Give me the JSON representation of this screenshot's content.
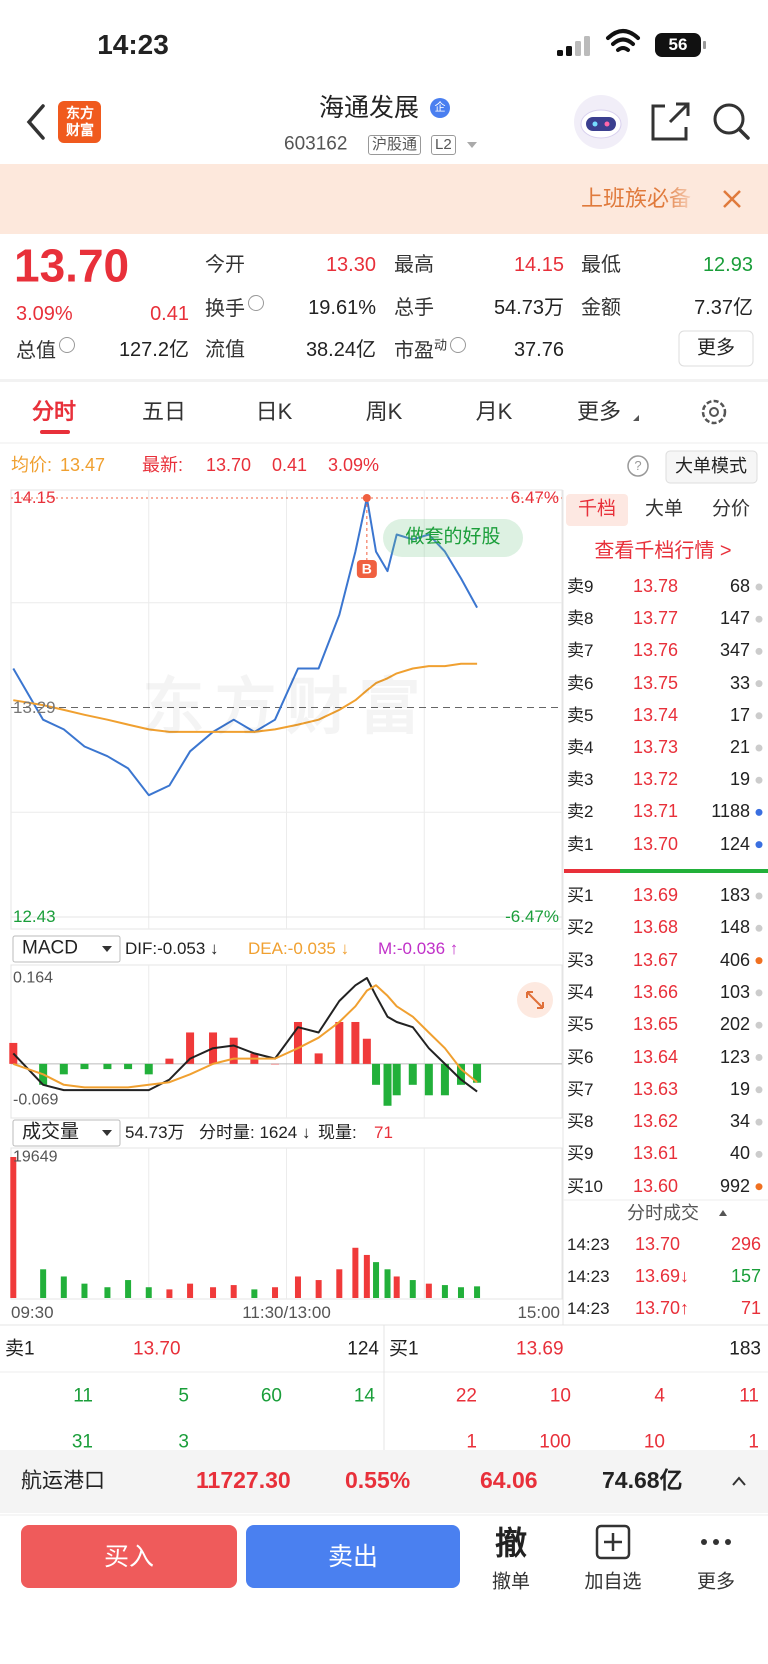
{
  "status": {
    "time": "14:23",
    "battery": "56"
  },
  "header": {
    "logo": "东方财富",
    "title": "海通发展",
    "badge": "企",
    "code": "603162",
    "tags": [
      "沪股通",
      "L2"
    ]
  },
  "banner": {
    "text": "上班族必备"
  },
  "quote": {
    "price": "13.70",
    "change_pct": "3.09%",
    "change": "0.41",
    "stats": [
      {
        "label": "今开",
        "value": "13.30",
        "color": "#e8303a"
      },
      {
        "label": "最高",
        "value": "14.15",
        "color": "#e8303a"
      },
      {
        "label": "最低",
        "value": "12.93",
        "color": "#1a9e3a"
      },
      {
        "label": "换手",
        "value": "19.61%",
        "color": "#222222",
        "info": true
      },
      {
        "label": "总手",
        "value": "54.73万",
        "color": "#222222"
      },
      {
        "label": "金额",
        "value": "7.37亿",
        "color": "#222222"
      },
      {
        "label": "总值",
        "value": "127.2亿",
        "color": "#222222",
        "info": true
      },
      {
        "label": "流值",
        "value": "38.24亿",
        "color": "#222222"
      },
      {
        "label": "市盈",
        "sup": "动",
        "value": "37.76",
        "color": "#222222",
        "info": true
      }
    ],
    "more": "更多"
  },
  "tabs": [
    "分时",
    "五日",
    "日K",
    "周K",
    "月K",
    "更多"
  ],
  "chart_header": {
    "avg_label": "均价:",
    "avg": "13.47",
    "last_label": "最新:",
    "last": "13.70",
    "change": "0.41",
    "pct": "3.09%",
    "help": "?",
    "mode": "大单模式"
  },
  "chart_data": [
    {
      "type": "line",
      "x": [
        1,
        14,
        23,
        32,
        42,
        51,
        60,
        69,
        78,
        88,
        97,
        106,
        115,
        125,
        134,
        143,
        150,
        155,
        159,
        164,
        168,
        175,
        182,
        189,
        196,
        203
      ],
      "xlim": [
        0,
        240
      ],
      "ylim": [
        12.43,
        14.15
      ],
      "yticks": [
        14.15,
        13.29,
        12.43
      ],
      "y2lim": [
        -6.47,
        6.47
      ],
      "y2ticks": [
        {
          "value": 6.47,
          "label": "6.47%"
        },
        {
          "value": -6.47,
          "label": "-6.47%"
        }
      ],
      "series": [
        {
          "color": "#3b76d0",
          "values": [
            13.45,
            13.24,
            13.2,
            13.13,
            13.09,
            13.04,
            12.93,
            12.97,
            13.11,
            13.19,
            13.24,
            13.19,
            13.24,
            13.45,
            13.45,
            13.67,
            13.93,
            14.15,
            13.93,
            13.85,
            14.0,
            13.98,
            14.0,
            13.93,
            13.82,
            13.7
          ]
        },
        {
          "color": "#f0a030",
          "values": [
            13.32,
            13.3,
            13.28,
            13.26,
            13.24,
            13.22,
            13.2,
            13.19,
            13.19,
            13.19,
            13.19,
            13.19,
            13.2,
            13.22,
            13.24,
            13.28,
            13.32,
            13.36,
            13.39,
            13.41,
            13.43,
            13.45,
            13.46,
            13.46,
            13.47,
            13.47
          ]
        }
      ],
      "high_marker": {
        "x": 155,
        "value": 14.15,
        "label": "B"
      },
      "annotation": "做套的好股",
      "watermark": "东方财富"
    },
    {
      "type": "line",
      "title": "MACD",
      "legend": [
        {
          "text": "DIF:-0.053 ↓",
          "color": "#222222"
        },
        {
          "text": "DEA:-0.035 ↓",
          "color": "#f0a030"
        },
        {
          "text": "M:-0.036 ↑",
          "color": "#c030c8"
        }
      ],
      "x": [
        1,
        14,
        23,
        32,
        42,
        51,
        60,
        69,
        78,
        88,
        97,
        106,
        115,
        125,
        134,
        143,
        150,
        155,
        159,
        164,
        168,
        175,
        182,
        189,
        196,
        203
      ],
      "xlim": [
        0,
        240
      ],
      "ylim": [
        -0.069,
        0.164
      ],
      "yticks": [
        0.164,
        -0.069
      ],
      "series": [
        {
          "color": "#222222",
          "values": [
            0.02,
            -0.04,
            -0.05,
            -0.05,
            -0.05,
            -0.05,
            -0.05,
            -0.03,
            0.01,
            0.03,
            0.035,
            0.02,
            0.01,
            0.07,
            0.06,
            0.12,
            0.15,
            0.164,
            0.13,
            0.09,
            0.08,
            0.07,
            0.03,
            0,
            -0.03,
            -0.053
          ]
        },
        {
          "color": "#f0a030",
          "values": [
            0,
            -0.02,
            -0.04,
            -0.045,
            -0.045,
            -0.045,
            -0.04,
            -0.035,
            -0.02,
            0,
            0.01,
            0.01,
            0.01,
            0.03,
            0.05,
            0.08,
            0.11,
            0.14,
            0.15,
            0.13,
            0.11,
            0.09,
            0.06,
            0.03,
            -0.01,
            -0.035
          ]
        },
        {
          "type": "bar",
          "up_color": "#f03a3a",
          "down_color": "#22b03a",
          "values": [
            0.04,
            -0.04,
            -0.02,
            -0.01,
            -0.01,
            -0.01,
            -0.02,
            0.01,
            0.06,
            0.06,
            0.05,
            0.02,
            0,
            0.08,
            0.02,
            0.08,
            0.08,
            0.048,
            -0.04,
            -0.08,
            -0.06,
            -0.04,
            -0.06,
            -0.06,
            -0.04,
            -0.036
          ]
        }
      ]
    },
    {
      "type": "bar",
      "title": "成交量",
      "info": [
        {
          "text": "54.73万",
          "color": "#222222"
        },
        {
          "text": "分时量: 1624 ↓",
          "color": "#222222"
        },
        {
          "text": "现量:",
          "color": "#222222"
        },
        {
          "text": "71",
          "color": "#e8303a"
        }
      ],
      "x": [
        1,
        14,
        23,
        32,
        42,
        51,
        60,
        69,
        78,
        88,
        97,
        106,
        115,
        125,
        134,
        143,
        150,
        155,
        159,
        164,
        168,
        175,
        182,
        189,
        196,
        203
      ],
      "xlim": [
        0,
        240
      ],
      "xticks": [
        {
          "value": 0,
          "label": "09:30"
        },
        {
          "value": 120,
          "label": "11:30/13:00"
        },
        {
          "value": 240,
          "label": "15:00"
        }
      ],
      "ylim": [
        0,
        19649
      ],
      "yticks": [
        19649
      ],
      "up_color": "#f03a3a",
      "down_color": "#22b03a",
      "values": [
        19649,
        4000,
        3000,
        2000,
        1500,
        2500,
        1500,
        1200,
        2000,
        1500,
        1800,
        1200,
        1500,
        3000,
        2500,
        4000,
        7000,
        6000,
        5000,
        4000,
        3000,
        2500,
        2000,
        1800,
        1500,
        1624
      ]
    }
  ],
  "book": {
    "tabs": [
      "千档",
      "大单",
      "分价"
    ],
    "link": "查看千档行情 >",
    "asks": [
      {
        "label": "卖9",
        "price": "13.78",
        "volume": "68",
        "dot": "#cccccc"
      },
      {
        "label": "卖8",
        "price": "13.77",
        "volume": "147",
        "dot": "#cccccc"
      },
      {
        "label": "卖7",
        "price": "13.76",
        "volume": "347",
        "dot": "#cccccc"
      },
      {
        "label": "卖6",
        "price": "13.75",
        "volume": "33",
        "dot": "#cccccc"
      },
      {
        "label": "卖5",
        "price": "13.74",
        "volume": "17",
        "dot": "#cccccc"
      },
      {
        "label": "卖4",
        "price": "13.73",
        "volume": "21",
        "dot": "#cccccc"
      },
      {
        "label": "卖3",
        "price": "13.72",
        "volume": "19",
        "dot": "#cccccc"
      },
      {
        "label": "卖2",
        "price": "13.71",
        "volume": "1188",
        "dot": "#3a6fe0"
      },
      {
        "label": "卖1",
        "price": "13.70",
        "volume": "124",
        "dot": "#3a6fe0"
      }
    ],
    "bids": [
      {
        "label": "买1",
        "price": "13.69",
        "volume": "183",
        "dot": "#cccccc"
      },
      {
        "label": "买2",
        "price": "13.68",
        "volume": "148",
        "dot": "#cccccc"
      },
      {
        "label": "买3",
        "price": "13.67",
        "volume": "406",
        "dot": "#f07020"
      },
      {
        "label": "买4",
        "price": "13.66",
        "volume": "103",
        "dot": "#cccccc"
      },
      {
        "label": "买5",
        "price": "13.65",
        "volume": "202",
        "dot": "#cccccc"
      },
      {
        "label": "买6",
        "price": "13.64",
        "volume": "123",
        "dot": "#cccccc"
      },
      {
        "label": "买7",
        "price": "13.63",
        "volume": "19",
        "dot": "#cccccc"
      },
      {
        "label": "买8",
        "price": "13.62",
        "volume": "34",
        "dot": "#cccccc"
      },
      {
        "label": "买9",
        "price": "13.61",
        "volume": "40",
        "dot": "#cccccc"
      },
      {
        "label": "买10",
        "price": "13.60",
        "volume": "992",
        "dot": "#f07020"
      }
    ]
  },
  "trades": {
    "title": "分时成交",
    "rows": [
      {
        "time": "14:23",
        "price": "13.70",
        "volume": "296",
        "color": "#e8303a"
      },
      {
        "time": "14:23",
        "price": "13.69↓",
        "volume": "157",
        "color": "#1a9e3a"
      },
      {
        "time": "14:23",
        "price": "13.70↑",
        "volume": "71",
        "color": "#e8303a"
      }
    ]
  },
  "level1": {
    "ask_label": "卖1",
    "ask_price": "13.70",
    "ask_volume": "124",
    "bid_label": "买1",
    "bid_price": "13.69",
    "bid_volume": "183",
    "ask_rows": [
      [
        "11",
        "5",
        "60",
        "14"
      ],
      [
        "31",
        "3"
      ]
    ],
    "bid_rows": [
      [
        "22",
        "10",
        "4",
        "11"
      ],
      [
        "1",
        "100",
        "10",
        "1"
      ]
    ]
  },
  "index_bar": {
    "name": "航运港口",
    "value": "11727.30",
    "pct": "0.55%",
    "change": "64.06",
    "amount": "74.68亿"
  },
  "actions": {
    "buy": "买入",
    "sell": "卖出",
    "cancel_icon": "撤",
    "cancel": "撤单",
    "watch": "加自选",
    "more": "更多"
  }
}
